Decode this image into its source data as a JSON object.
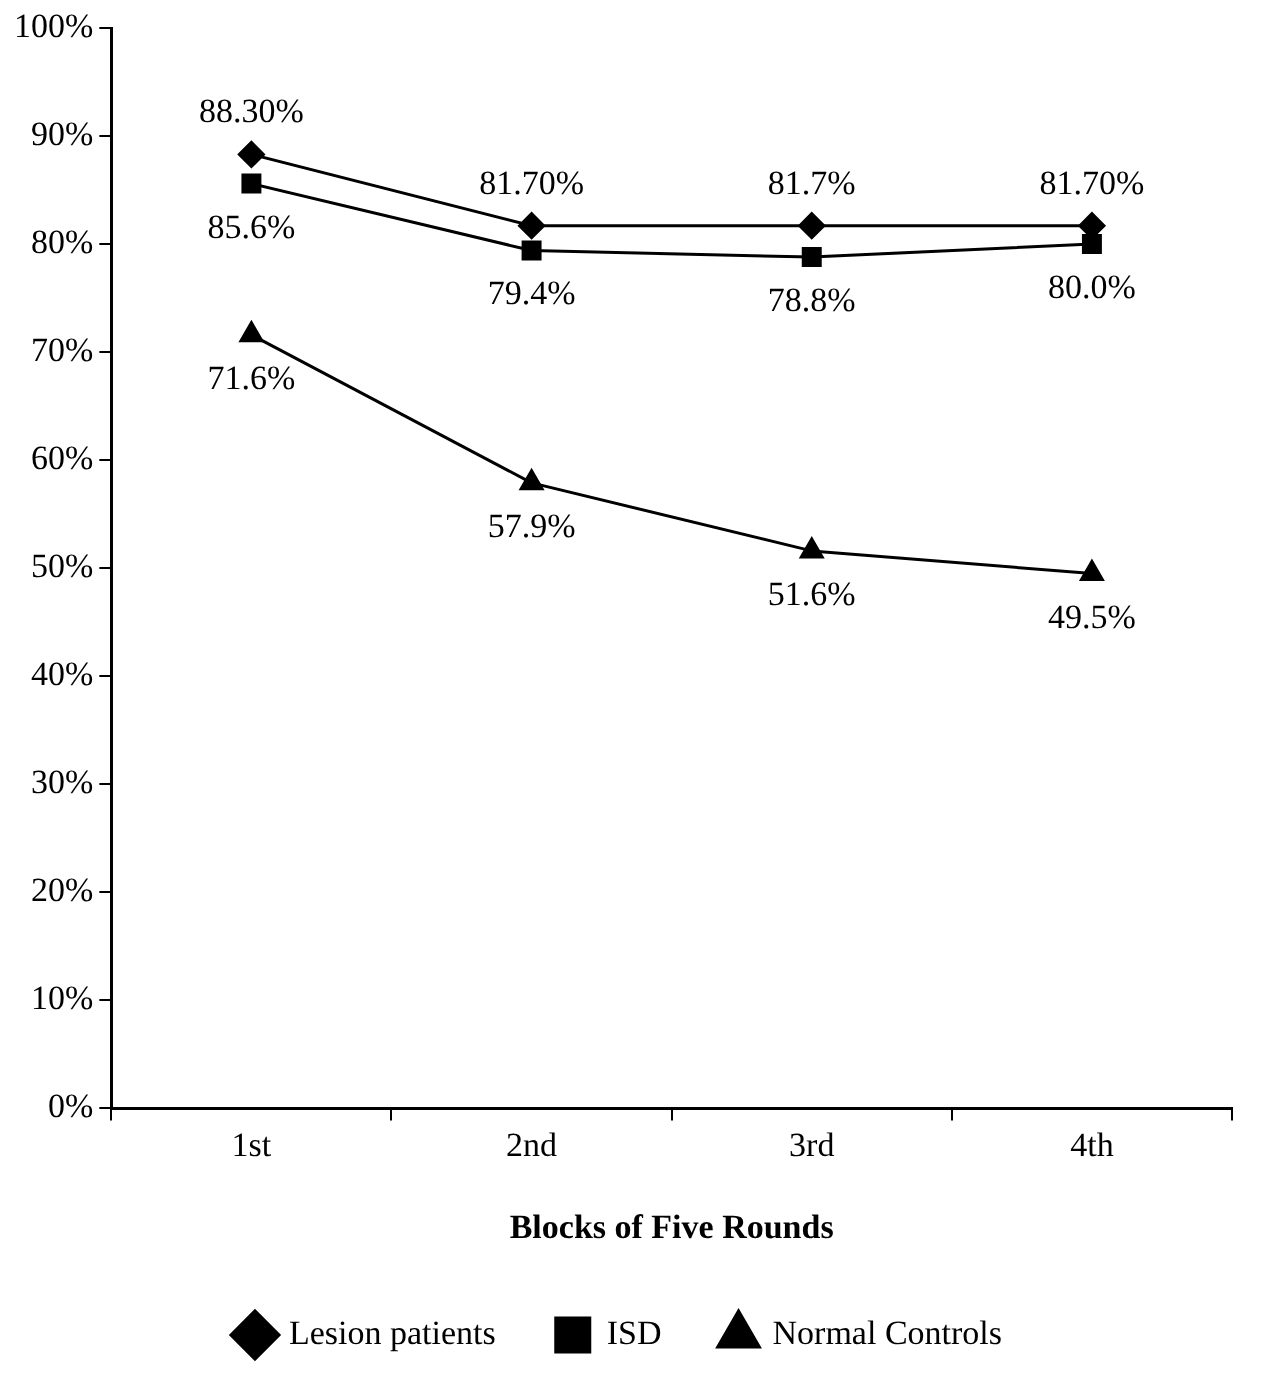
{
  "chart_data": {
    "type": "line",
    "xlabel": "Blocks of Five Rounds",
    "categories": [
      "1st",
      "2nd",
      "3rd",
      "4th"
    ],
    "series": [
      {
        "name": "Lesion patients",
        "color": "#000000",
        "marker": "diamond",
        "values": [
          88.3,
          81.7,
          81.7,
          81.7
        ],
        "value_labels": [
          "88.30%",
          "81.70%",
          "81.7%",
          "81.70%"
        ]
      },
      {
        "name": "ISD",
        "color": "#000000",
        "marker": "square",
        "values": [
          85.6,
          79.4,
          78.8,
          80.0
        ],
        "value_labels": [
          "85.6%",
          "79.4%",
          "78.8%",
          "80.0%"
        ]
      },
      {
        "name": "Normal Controls",
        "color": "#000000",
        "marker": "triangle",
        "values": [
          71.6,
          57.9,
          51.6,
          49.5
        ],
        "value_labels": [
          "71.6%",
          "57.9%",
          "51.6%",
          "49.5%"
        ]
      }
    ],
    "ylim": [
      0,
      100
    ],
    "yticks": [
      {
        "value": 0,
        "label": "0%"
      },
      {
        "value": 10,
        "label": "10%"
      },
      {
        "value": 20,
        "label": "20%"
      },
      {
        "value": 30,
        "label": "30%"
      },
      {
        "value": 40,
        "label": "40%"
      },
      {
        "value": 50,
        "label": "50%"
      },
      {
        "value": 60,
        "label": "60%"
      },
      {
        "value": 70,
        "label": "70%"
      },
      {
        "value": 80,
        "label": "80%"
      },
      {
        "value": 90,
        "label": "90%"
      },
      {
        "value": 100,
        "label": "100%"
      }
    ],
    "grid": false,
    "legend": "bottom",
    "line_style": "solid"
  }
}
